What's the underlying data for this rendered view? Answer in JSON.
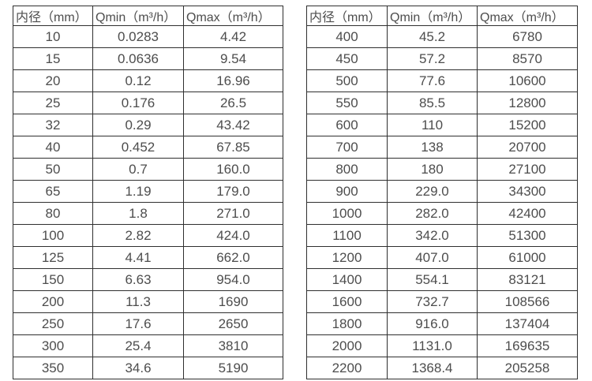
{
  "page": {
    "background": "#ffffff",
    "border_color": "#2f2f2f",
    "text_color": "#4d4d4d"
  },
  "tables": [
    {
      "name": "flow-spec-table-small-diameters",
      "headers": [
        "内径（mm）",
        "Qmin（m³/h）",
        "Qmax（m³/h）"
      ],
      "rows": [
        [
          "10",
          "0.0283",
          "4.42"
        ],
        [
          "15",
          "0.0636",
          "9.54"
        ],
        [
          "20",
          "0.12",
          "16.96"
        ],
        [
          "25",
          "0.176",
          "26.5"
        ],
        [
          "32",
          "0.29",
          "43.42"
        ],
        [
          "40",
          "0.452",
          "67.85"
        ],
        [
          "50",
          "0.7",
          "160.0"
        ],
        [
          "65",
          "1.19",
          "179.0"
        ],
        [
          "80",
          "1.8",
          "271.0"
        ],
        [
          "100",
          "2.82",
          "424.0"
        ],
        [
          "125",
          "4.41",
          "662.0"
        ],
        [
          "150",
          "6.63",
          "954.0"
        ],
        [
          "200",
          "11.3",
          "1690"
        ],
        [
          "250",
          "17.6",
          "2650"
        ],
        [
          "300",
          "25.4",
          "3810"
        ],
        [
          "350",
          "34.6",
          "5190"
        ]
      ]
    },
    {
      "name": "flow-spec-table-large-diameters",
      "headers": [
        "内径（mm）",
        "Qmin（m³/h）",
        "Qmax（m³/h）"
      ],
      "rows": [
        [
          "400",
          "45.2",
          "6780"
        ],
        [
          "450",
          "57.2",
          "8570"
        ],
        [
          "500",
          "77.6",
          "10600"
        ],
        [
          "550",
          "85.5",
          "12800"
        ],
        [
          "600",
          "110",
          "15200"
        ],
        [
          "700",
          "138",
          "20700"
        ],
        [
          "800",
          "180",
          "27100"
        ],
        [
          "900",
          "229.0",
          "34300"
        ],
        [
          "1000",
          "282.0",
          "42400"
        ],
        [
          "1100",
          "342.0",
          "51300"
        ],
        [
          "1200",
          "407.0",
          "61000"
        ],
        [
          "1400",
          "554.1",
          "83121"
        ],
        [
          "1600",
          "732.7",
          "108566"
        ],
        [
          "1800",
          "916.0",
          "137404"
        ],
        [
          "2000",
          "1131.0",
          "169635"
        ],
        [
          "2200",
          "1368.4",
          "205258"
        ]
      ]
    }
  ],
  "chart_data": {
    "type": "table",
    "title": "",
    "tables": [
      {
        "columns": [
          "内径（mm）",
          "Qmin（m³/h）",
          "Qmax（m³/h）"
        ],
        "diameters_mm": [
          10,
          15,
          20,
          25,
          32,
          40,
          50,
          65,
          80,
          100,
          125,
          150,
          200,
          250,
          300,
          350
        ],
        "qmin": [
          0.0283,
          0.0636,
          0.12,
          0.176,
          0.29,
          0.452,
          0.7,
          1.19,
          1.8,
          2.82,
          4.41,
          6.63,
          11.3,
          17.6,
          25.4,
          34.6
        ],
        "qmax": [
          4.42,
          9.54,
          16.96,
          26.5,
          43.42,
          67.85,
          160.0,
          179.0,
          271.0,
          424.0,
          662.0,
          954.0,
          1690,
          2650,
          3810,
          5190
        ]
      },
      {
        "columns": [
          "内径（mm）",
          "Qmin（m³/h）",
          "Qmax（m³/h）"
        ],
        "diameters_mm": [
          400,
          450,
          500,
          550,
          600,
          700,
          800,
          900,
          1000,
          1100,
          1200,
          1400,
          1600,
          1800,
          2000,
          2200
        ],
        "qmin": [
          45.2,
          57.2,
          77.6,
          85.5,
          110,
          138,
          180,
          229.0,
          282.0,
          342.0,
          407.0,
          554.1,
          732.7,
          916.0,
          1131.0,
          1368.4
        ],
        "qmax": [
          6780,
          8570,
          10600,
          12800,
          15200,
          20700,
          27100,
          34300,
          42400,
          51300,
          61000,
          83121,
          108566,
          137404,
          169635,
          205258
        ]
      }
    ]
  }
}
